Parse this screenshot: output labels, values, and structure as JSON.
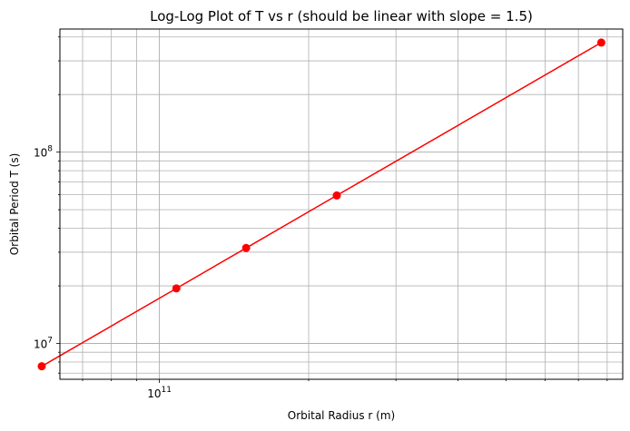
{
  "chart_data": {
    "type": "line",
    "title": "Log-Log Plot of T vs r (should be linear with slope = 1.5)",
    "xlabel": "Orbital Radius r (m)",
    "ylabel": "Orbital Period T (s)",
    "xscale": "log",
    "yscale": "log",
    "xlim": [
      63000000000.0,
      860000000000.0
    ],
    "ylim": [
      6500000.0,
      440000000.0
    ],
    "grid": "major-and-minor",
    "x_tick_labels": [
      {
        "value": 100000000000.0,
        "base": "10",
        "exp": "11"
      }
    ],
    "y_tick_labels": [
      {
        "value": 10000000.0,
        "base": "10",
        "exp": "7"
      },
      {
        "value": 100000000.0,
        "base": "10",
        "exp": "8"
      }
    ],
    "series": [
      {
        "color": "#ff0000",
        "marker": "circle",
        "x": [
          57900000000.0,
          108200000000.0,
          149600000000.0,
          227900000000.0,
          778500000000.0
        ],
        "y": [
          7600000.0,
          19400000.0,
          31560000.0,
          59400000.0,
          374000000.0
        ]
      }
    ]
  }
}
